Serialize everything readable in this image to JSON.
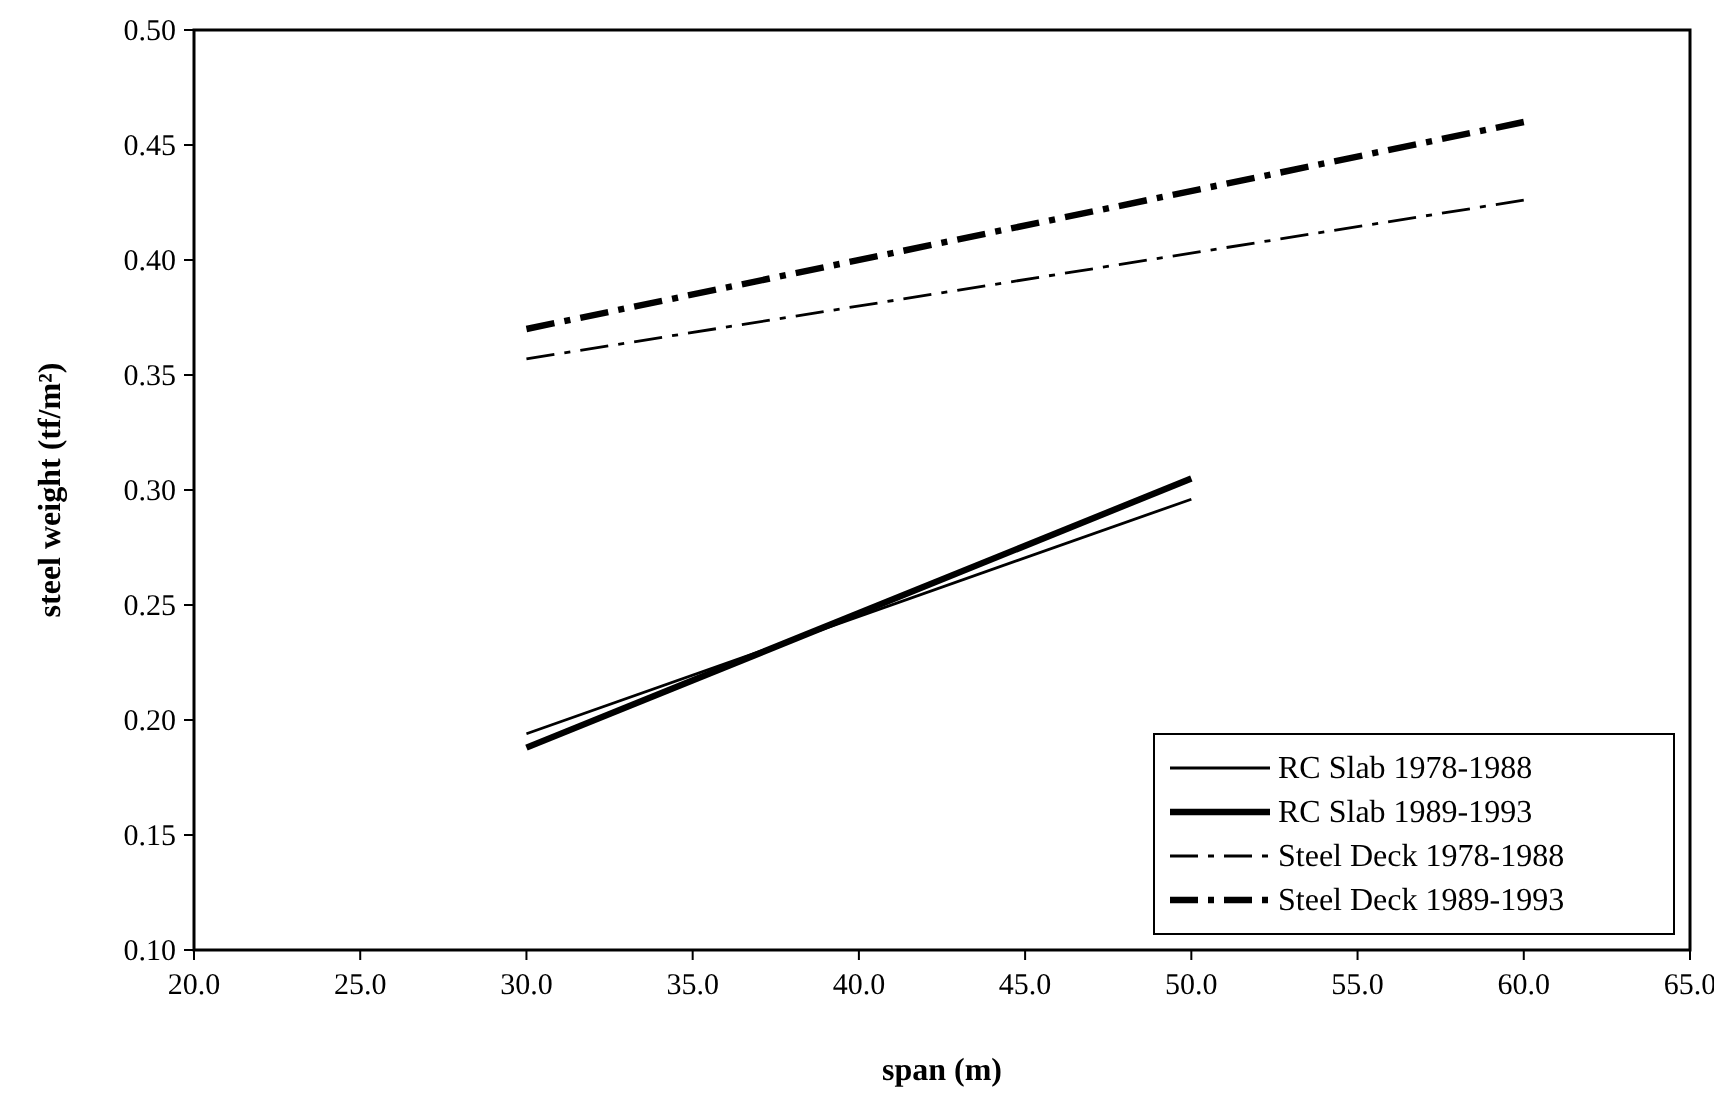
{
  "chart_data": {
    "type": "line",
    "xlabel": "span (m)",
    "ylabel": "steel weight (tf/m²)",
    "xlim": [
      20,
      65
    ],
    "ylim": [
      0.1,
      0.5
    ],
    "xticks": [
      {
        "value": 20,
        "label": "20.0"
      },
      {
        "value": 25,
        "label": "25.0"
      },
      {
        "value": 30,
        "label": "30.0"
      },
      {
        "value": 35,
        "label": "35.0"
      },
      {
        "value": 40,
        "label": "40.0"
      },
      {
        "value": 45,
        "label": "45.0"
      },
      {
        "value": 50,
        "label": "50.0"
      },
      {
        "value": 55,
        "label": "55.0"
      },
      {
        "value": 60,
        "label": "60.0"
      },
      {
        "value": 65,
        "label": "65.0"
      }
    ],
    "yticks": [
      {
        "value": 0.1,
        "label": "0.10"
      },
      {
        "value": 0.15,
        "label": "0.15"
      },
      {
        "value": 0.2,
        "label": "0.20"
      },
      {
        "value": 0.25,
        "label": "0.25"
      },
      {
        "value": 0.3,
        "label": "0.30"
      },
      {
        "value": 0.35,
        "label": "0.35"
      },
      {
        "value": 0.4,
        "label": "0.40"
      },
      {
        "value": 0.45,
        "label": "0.45"
      },
      {
        "value": 0.5,
        "label": "0.50"
      }
    ],
    "grid": false,
    "legend": "bottom right",
    "marker": "none",
    "series": [
      {
        "name": "RC Slab 1978-1988",
        "color": "#000000",
        "line_style": "solid",
        "x": [
          30,
          50
        ],
        "values": [
          0.194,
          0.296
        ]
      },
      {
        "name": "RC Slab 1989-1993",
        "color": "#000000",
        "line_style": "solid",
        "x": [
          30,
          50
        ],
        "values": [
          0.188,
          0.305
        ]
      },
      {
        "name": "Steel Deck 1978-1988",
        "color": "#000000",
        "line_style": "dashdot",
        "x": [
          30,
          60
        ],
        "values": [
          0.357,
          0.426
        ]
      },
      {
        "name": "Steel Deck 1989-1993",
        "color": "#000000",
        "line_style": "dashdot",
        "x": [
          30,
          60
        ],
        "values": [
          0.37,
          0.46
        ]
      }
    ]
  }
}
